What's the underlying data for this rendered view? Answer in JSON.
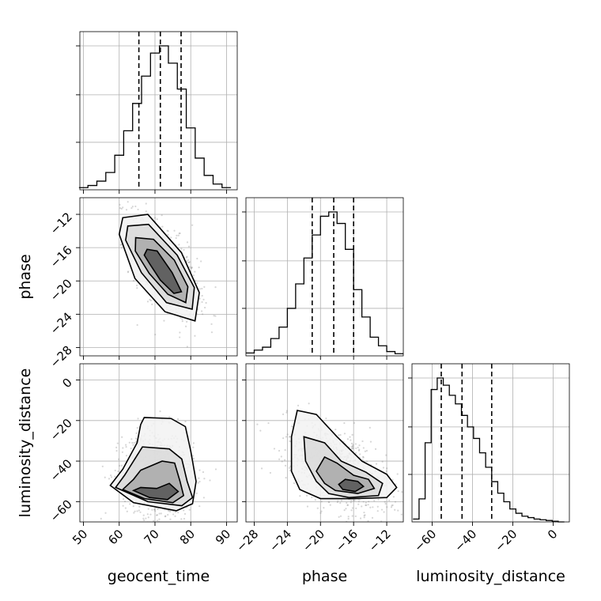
{
  "chart_data": {
    "type": "corner",
    "parameters": [
      "geocent_time",
      "phase",
      "luminosity_distance"
    ],
    "axis_labels": {
      "x": [
        "geocent_time",
        "phase",
        "luminosity_distance"
      ],
      "y_row2": "phase",
      "y_row3": "luminosity_distance"
    },
    "ranges": {
      "geocent_time": [
        49,
        93
      ],
      "phase": [
        -29,
        -10
      ],
      "luminosity_distance": [
        -70,
        8
      ]
    },
    "ticks": {
      "geocent_time": {
        "values": [
          50,
          60,
          70,
          80,
          90
        ],
        "labels": [
          "50",
          "60",
          "70",
          "80",
          "90"
        ]
      },
      "phase": {
        "values": [
          -28,
          -24,
          -20,
          -16,
          -12
        ],
        "labels": [
          "−28",
          "−24",
          "−20",
          "−16",
          "−12"
        ]
      },
      "luminosity_distance": {
        "values": [
          -60,
          -40,
          -20,
          0
        ],
        "labels": [
          "−60",
          "−40",
          "−20",
          "0"
        ]
      }
    },
    "grid": true,
    "histograms": [
      {
        "parameter": "geocent_time",
        "bins": [
          50,
          52.5,
          55,
          57.5,
          60,
          62.5,
          65,
          67.5,
          70,
          72.5,
          75,
          77.5,
          80,
          82.5,
          85,
          87.5,
          90
        ],
        "counts": [
          0.015,
          0.03,
          0.06,
          0.12,
          0.24,
          0.41,
          0.6,
          0.79,
          0.95,
          1.0,
          0.88,
          0.7,
          0.43,
          0.22,
          0.1,
          0.04,
          0.015
        ],
        "quantiles": [
          65.5,
          71.5,
          77.3
        ]
      },
      {
        "parameter": "phase",
        "bins": [
          -28.5,
          -27.5,
          -26.5,
          -25.5,
          -24.5,
          -23.5,
          -22.5,
          -21.5,
          -20.5,
          -19.5,
          -18.5,
          -17.5,
          -16.5,
          -15.5,
          -14.5,
          -13.5,
          -12.5,
          -11.5,
          -10.5
        ],
        "counts": [
          0.02,
          0.04,
          0.06,
          0.12,
          0.2,
          0.33,
          0.5,
          0.68,
          0.84,
          0.97,
          1.0,
          0.92,
          0.74,
          0.46,
          0.27,
          0.13,
          0.07,
          0.03,
          0.015
        ],
        "quantiles": [
          -21,
          -18.4,
          -16
        ]
      },
      {
        "parameter": "luminosity_distance",
        "bins": [
          -68,
          -65,
          -62,
          -59,
          -56,
          -53,
          -50,
          -47,
          -44,
          -41,
          -38,
          -35,
          -32,
          -29,
          -26,
          -23,
          -20,
          -17,
          -14,
          -11,
          -8,
          -5,
          -2,
          1,
          4
        ],
        "counts": [
          0.02,
          0.16,
          0.55,
          0.92,
          1.0,
          0.95,
          0.88,
          0.82,
          0.74,
          0.66,
          0.58,
          0.48,
          0.38,
          0.28,
          0.2,
          0.14,
          0.09,
          0.06,
          0.04,
          0.03,
          0.02,
          0.015,
          0.01,
          0.005,
          0
        ],
        "quantiles": [
          -55.5,
          -45.2,
          -30.5
        ]
      }
    ],
    "joint_2d": [
      {
        "x": "geocent_time",
        "y": "phase",
        "center": [
          72.5,
          -18.3
        ],
        "sd": [
          4.8,
          3.0
        ],
        "rho": -0.62,
        "contours": [
          {
            "level": 0.5,
            "points": [
              [
                67.8,
                -16.2
              ],
              [
                70.6,
                -16.4
              ],
              [
                74.8,
                -19.0
              ],
              [
                77.4,
                -21.3
              ],
              [
                75.3,
                -21.5
              ],
              [
                71.5,
                -19.9
              ],
              [
                68.6,
                -18.0
              ],
              [
                67.0,
                -16.9
              ]
            ]
          },
          {
            "level": 1.0,
            "points": [
              [
                64.6,
                -14.8
              ],
              [
                69.6,
                -15.0
              ],
              [
                75.4,
                -17.5
              ],
              [
                79.2,
                -20.7
              ],
              [
                78.6,
                -22.6
              ],
              [
                73.6,
                -21.6
              ],
              [
                68.4,
                -19.1
              ],
              [
                64.5,
                -16.4
              ]
            ]
          },
          {
            "level": 1.5,
            "points": [
              [
                62.4,
                -13.4
              ],
              [
                68.2,
                -13.2
              ],
              [
                76.2,
                -16.9
              ],
              [
                81.0,
                -20.8
              ],
              [
                80.4,
                -23.4
              ],
              [
                73.2,
                -22.6
              ],
              [
                66.2,
                -19.0
              ],
              [
                61.8,
                -15.1
              ]
            ]
          },
          {
            "level": 2.0,
            "points": [
              [
                61.0,
                -12.4
              ],
              [
                68.0,
                -12.0
              ],
              [
                77.4,
                -16.6
              ],
              [
                82.4,
                -21.4
              ],
              [
                81.2,
                -24.8
              ],
              [
                72.8,
                -23.7
              ],
              [
                64.4,
                -19.7
              ],
              [
                60.0,
                -14.4
              ]
            ]
          }
        ]
      },
      {
        "x": "geocent_time",
        "y": "luminosity_distance",
        "center": [
          71.0,
          -47.0
        ],
        "sd": [
          5.0,
          11.0
        ],
        "rho": -0.05,
        "contours": [
          {
            "level": 0.5,
            "points": [
              [
                70.5,
                -53.5
              ],
              [
                74.0,
                -51.0
              ],
              [
                76.5,
                -55.0
              ],
              [
                73.5,
                -59.0
              ],
              [
                68.5,
                -58.0
              ],
              [
                64.0,
                -54.5
              ],
              [
                66.0,
                -53.0
              ]
            ]
          },
          {
            "level": 1.0,
            "points": [
              [
                66.0,
                -44.5
              ],
              [
                72.0,
                -40.0
              ],
              [
                75.5,
                -41.0
              ],
              [
                77.0,
                -50.0
              ],
              [
                78.0,
                -57.0
              ],
              [
                75.0,
                -60.5
              ],
              [
                67.0,
                -58.5
              ],
              [
                61.0,
                -54.0
              ],
              [
                64.0,
                -49.0
              ]
            ]
          },
          {
            "level": 1.5,
            "points": [
              [
                66.5,
                -33.0
              ],
              [
                74.0,
                -34.0
              ],
              [
                77.5,
                -39.0
              ],
              [
                79.0,
                -50.0
              ],
              [
                80.5,
                -58.0
              ],
              [
                77.5,
                -62.0
              ],
              [
                68.0,
                -60.0
              ],
              [
                59.0,
                -53.0
              ],
              [
                61.5,
                -47.0
              ]
            ]
          },
          {
            "level": 2.0,
            "points": [
              [
                67.0,
                -18.5
              ],
              [
                74.5,
                -19.0
              ],
              [
                78.5,
                -23.0
              ],
              [
                80.0,
                -35.0
              ],
              [
                81.5,
                -50.0
              ],
              [
                80.5,
                -61.0
              ],
              [
                76.0,
                -64.5
              ],
              [
                64.0,
                -60.5
              ],
              [
                57.5,
                -52.0
              ],
              [
                61.0,
                -44.0
              ],
              [
                65.0,
                -31.0
              ],
              [
                66.0,
                -22.0
              ]
            ]
          }
        ]
      },
      {
        "x": "phase",
        "y": "luminosity_distance",
        "center": [
          -18.0,
          -44.0
        ],
        "sd": [
          3.0,
          11.0
        ],
        "rho": -0.5,
        "contours": [
          {
            "level": 0.5,
            "points": [
              [
                -17.0,
                -49.0
              ],
              [
                -15.5,
                -50.0
              ],
              [
                -14.8,
                -52.5
              ],
              [
                -15.8,
                -55.0
              ],
              [
                -17.3,
                -54.0
              ],
              [
                -17.8,
                -51.5
              ]
            ]
          },
          {
            "level": 1.0,
            "points": [
              [
                -19.5,
                -38.0
              ],
              [
                -18.0,
                -41.0
              ],
              [
                -16.0,
                -47.0
              ],
              [
                -14.2,
                -49.0
              ],
              [
                -13.5,
                -53.5
              ],
              [
                -15.5,
                -56.0
              ],
              [
                -18.2,
                -54.5
              ],
              [
                -19.5,
                -51.0
              ],
              [
                -20.5,
                -45.0
              ]
            ]
          },
          {
            "level": 1.5,
            "points": [
              [
                -22.0,
                -28.0
              ],
              [
                -19.5,
                -31.0
              ],
              [
                -17.5,
                -40.0
              ],
              [
                -14.5,
                -45.5
              ],
              [
                -12.5,
                -51.0
              ],
              [
                -13.0,
                -57.0
              ],
              [
                -16.5,
                -58.0
              ],
              [
                -19.0,
                -56.0
              ],
              [
                -20.5,
                -50.0
              ],
              [
                -21.8,
                -40.0
              ]
            ]
          },
          {
            "level": 2.0,
            "points": [
              [
                -22.8,
                -15.0
              ],
              [
                -20.5,
                -17.0
              ],
              [
                -18.0,
                -28.0
              ],
              [
                -15.0,
                -40.0
              ],
              [
                -12.0,
                -46.5
              ],
              [
                -10.8,
                -53.0
              ],
              [
                -12.0,
                -58.0
              ],
              [
                -16.0,
                -58.5
              ],
              [
                -20.0,
                -58.5
              ],
              [
                -22.5,
                -54.0
              ],
              [
                -23.5,
                -45.0
              ],
              [
                -23.5,
                -28.0
              ]
            ]
          }
        ]
      }
    ]
  }
}
